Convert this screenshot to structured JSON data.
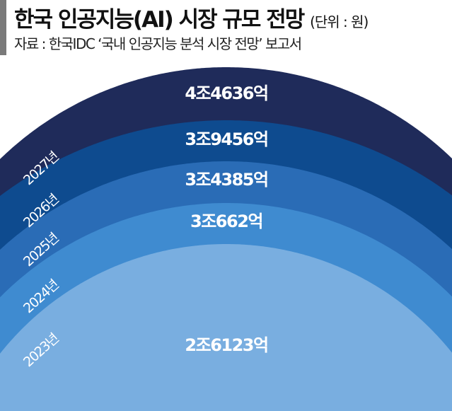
{
  "header": {
    "title": "한국 인공지능(AI) 시장 규모 전망",
    "unit": "(단위 : 원)",
    "source": "자료 : 한국IDC ‘국내 인공지능 분석 시장 전망’ 보고서"
  },
  "chart_data": {
    "type": "area",
    "title": "한국 인공지능(AI) 시장 규모 전망",
    "unit": "원",
    "categories": [
      "2027년",
      "2026년",
      "2025년",
      "2024년",
      "2023년"
    ],
    "labels": [
      "4조4636억",
      "3조9456억",
      "3조4385억",
      "3조662억",
      "2조6123억"
    ],
    "values_won_eok": [
      44636,
      39456,
      34385,
      30662,
      26123
    ],
    "colors": [
      "#1f2b5a",
      "#0e4b8f",
      "#2a6cb6",
      "#3f8bd0",
      "#79aee0"
    ]
  }
}
